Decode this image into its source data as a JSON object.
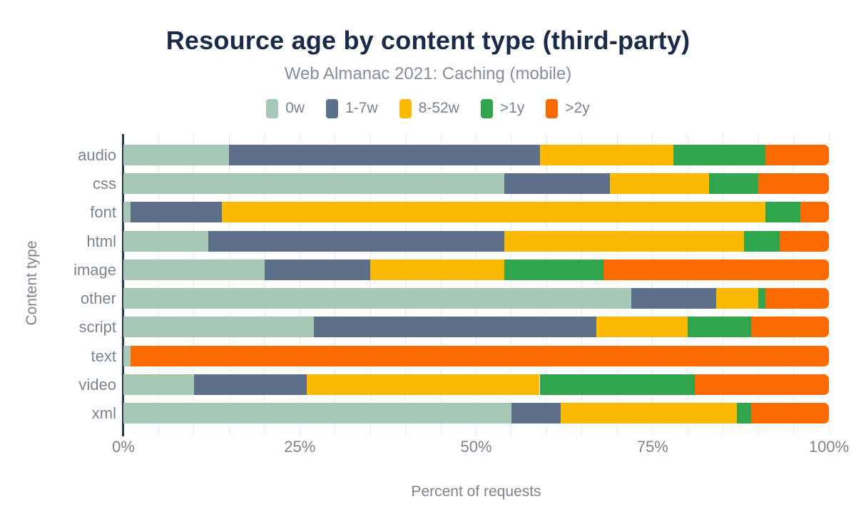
{
  "chart_data": {
    "type": "bar",
    "orientation": "horizontal-stacked",
    "title": "Resource age by content type (third-party)",
    "subtitle": "Web Almanac 2021: Caching (mobile)",
    "xlabel": "Percent of requests",
    "ylabel": "Content type",
    "xlim": [
      0,
      100
    ],
    "x_ticks": [
      {
        "label": "0%",
        "value": 0
      },
      {
        "label": "25%",
        "value": 25
      },
      {
        "label": "50%",
        "value": 50
      },
      {
        "label": "75%",
        "value": 75
      },
      {
        "label": "100%",
        "value": 100
      }
    ],
    "grid": {
      "minor_step_percent": 5,
      "color": "#e9ecee"
    },
    "legend_position": "top",
    "categories": [
      "audio",
      "css",
      "font",
      "html",
      "image",
      "other",
      "script",
      "text",
      "video",
      "xml"
    ],
    "series": [
      {
        "name": "0w",
        "color": "#a7c8b7",
        "values": [
          15,
          54,
          1,
          12,
          20,
          72,
          27,
          1,
          10,
          55
        ]
      },
      {
        "name": "1-7w",
        "color": "#5e7089",
        "values": [
          44,
          15,
          13,
          42,
          15,
          12,
          40,
          0,
          16,
          7
        ]
      },
      {
        "name": "8-52w",
        "color": "#fbb901",
        "values": [
          19,
          14,
          77,
          34,
          19,
          6,
          13,
          0,
          33,
          25
        ]
      },
      {
        "name": ">1y",
        "color": "#2fa64d",
        "values": [
          13,
          7,
          5,
          5,
          14,
          1,
          9,
          0,
          22,
          2
        ]
      },
      {
        "name": ">2y",
        "color": "#fa6a00",
        "values": [
          9,
          10,
          4,
          7,
          32,
          9,
          11,
          99,
          19,
          11
        ]
      }
    ],
    "axis_color": "#2d3a4e",
    "title_color": "#1a2b4a",
    "text_color": "#7c8490"
  }
}
